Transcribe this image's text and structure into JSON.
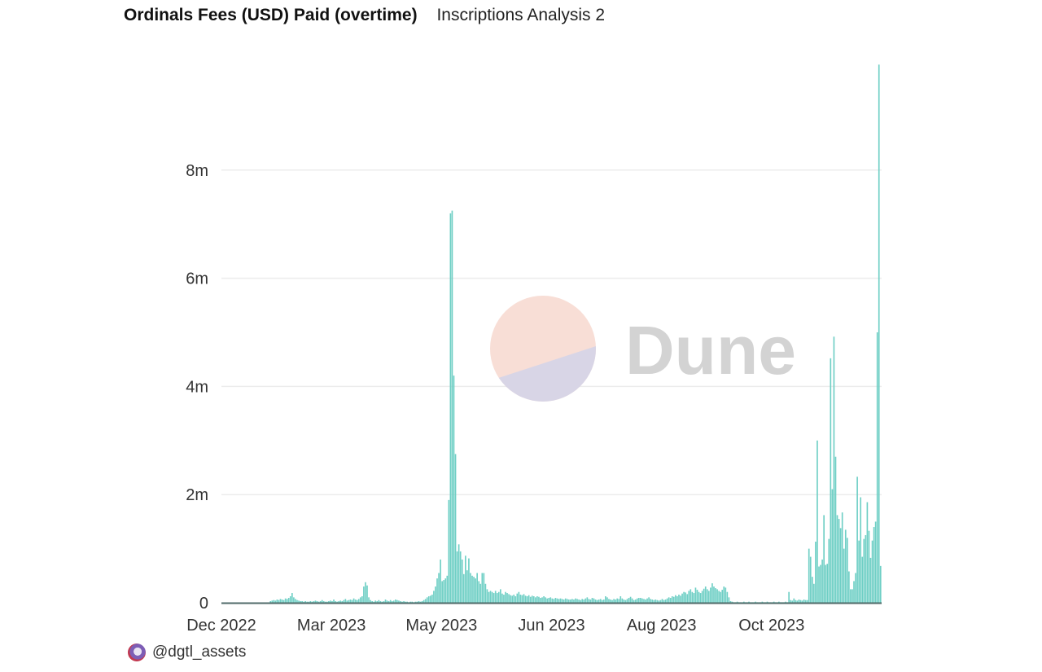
{
  "header": {
    "title": "Ordinals Fees (USD) Paid (overtime)",
    "subtitle": "Inscriptions Analysis 2"
  },
  "watermark": {
    "text": "Dune",
    "colors": {
      "top": "#f8ded6",
      "bottom": "#d8d5e6",
      "text": "#d3d3d3"
    }
  },
  "footer": {
    "author": "@dgtl_assets"
  },
  "chart_data": {
    "type": "bar",
    "title": "Ordinals Fees (USD) Paid (overtime)",
    "xlabel": "",
    "ylabel": "",
    "bar_color": "#6fcfc5",
    "grid": true,
    "ylim": [
      0,
      10
    ],
    "y_ticks": [
      {
        "value": 0,
        "label": "0"
      },
      {
        "value": 2,
        "label": "2m"
      },
      {
        "value": 4,
        "label": "4m"
      },
      {
        "value": 6,
        "label": "6m"
      },
      {
        "value": 8,
        "label": "8m"
      }
    ],
    "x_ticks": [
      {
        "index": 0,
        "label": "Dec 2022"
      },
      {
        "index": 66,
        "label": "Mar 2023"
      },
      {
        "index": 132,
        "label": "May 2023"
      },
      {
        "index": 198,
        "label": "Jun 2023"
      },
      {
        "index": 264,
        "label": "Aug 2023"
      },
      {
        "index": 330,
        "label": "Oct 2023"
      }
    ],
    "values": [
      0,
      0,
      0,
      0,
      0,
      0,
      0,
      0,
      0,
      0,
      0,
      0,
      0,
      0,
      0,
      0,
      0,
      0,
      0,
      0,
      0,
      0,
      0,
      0,
      0,
      0,
      0,
      0,
      0,
      0.03,
      0.04,
      0.05,
      0.04,
      0.06,
      0.05,
      0.07,
      0.06,
      0.05,
      0.08,
      0.07,
      0.09,
      0.12,
      0.18,
      0.1,
      0.07,
      0.05,
      0.04,
      0.03,
      0.03,
      0.02,
      0.03,
      0.02,
      0.02,
      0.03,
      0.02,
      0.03,
      0.04,
      0.03,
      0.02,
      0.03,
      0.05,
      0.03,
      0.02,
      0.02,
      0.03,
      0.04,
      0.03,
      0.06,
      0.03,
      0.02,
      0.03,
      0.04,
      0.03,
      0.05,
      0.07,
      0.04,
      0.05,
      0.06,
      0.05,
      0.08,
      0.06,
      0.05,
      0.07,
      0.1,
      0.12,
      0.3,
      0.38,
      0.32,
      0.1,
      0.05,
      0.03,
      0.02,
      0.04,
      0.03,
      0.05,
      0.03,
      0.02,
      0.03,
      0.06,
      0.04,
      0.03,
      0.05,
      0.03,
      0.04,
      0.06,
      0.05,
      0.04,
      0.03,
      0.02,
      0.03,
      0.02,
      0.02,
      0.01,
      0.02,
      0.02,
      0.01,
      0.02,
      0.02,
      0.03,
      0.02,
      0.03,
      0.05,
      0.07,
      0.1,
      0.12,
      0.13,
      0.15,
      0.22,
      0.3,
      0.45,
      0.55,
      0.8,
      0.4,
      0.42,
      0.45,
      0.5,
      1.9,
      7.2,
      7.25,
      4.2,
      2.75,
      0.95,
      1.08,
      0.95,
      0.8,
      0.53,
      0.87,
      0.6,
      0.82,
      0.55,
      0.5,
      0.48,
      0.45,
      0.55,
      0.4,
      0.35,
      0.55,
      0.55,
      0.35,
      0.25,
      0.2,
      0.22,
      0.2,
      0.18,
      0.22,
      0.18,
      0.2,
      0.25,
      0.17,
      0.15,
      0.2,
      0.18,
      0.16,
      0.14,
      0.13,
      0.15,
      0.12,
      0.17,
      0.2,
      0.15,
      0.14,
      0.16,
      0.13,
      0.12,
      0.14,
      0.11,
      0.13,
      0.12,
      0.1,
      0.12,
      0.11,
      0.09,
      0.1,
      0.12,
      0.1,
      0.08,
      0.09,
      0.1,
      0.08,
      0.07,
      0.09,
      0.08,
      0.07,
      0.08,
      0.07,
      0.06,
      0.08,
      0.07,
      0.06,
      0.06,
      0.07,
      0.06,
      0.08,
      0.07,
      0.06,
      0.05,
      0.07,
      0.06,
      0.08,
      0.1,
      0.07,
      0.06,
      0.09,
      0.08,
      0.06,
      0.05,
      0.06,
      0.07,
      0.05,
      0.06,
      0.12,
      0.1,
      0.07,
      0.06,
      0.05,
      0.07,
      0.06,
      0.08,
      0.07,
      0.12,
      0.08,
      0.06,
      0.05,
      0.07,
      0.09,
      0.11,
      0.08,
      0.05,
      0.06,
      0.08,
      0.09,
      0.09,
      0.08,
      0.07,
      0.06,
      0.08,
      0.1,
      0.07,
      0.06,
      0.05,
      0.06,
      0.05,
      0.04,
      0.05,
      0.07,
      0.05,
      0.06,
      0.08,
      0.1,
      0.09,
      0.12,
      0.11,
      0.14,
      0.12,
      0.15,
      0.13,
      0.17,
      0.2,
      0.19,
      0.16,
      0.22,
      0.25,
      0.2,
      0.18,
      0.28,
      0.24,
      0.2,
      0.18,
      0.22,
      0.26,
      0.3,
      0.25,
      0.22,
      0.28,
      0.36,
      0.3,
      0.27,
      0.25,
      0.22,
      0.2,
      0.24,
      0.3,
      0.28,
      0.2,
      0.1,
      0.03,
      0.02,
      0.01,
      0.01,
      0.02,
      0.01,
      0.01,
      0.01,
      0.02,
      0.01,
      0.01,
      0.02,
      0.01,
      0.01,
      0.01,
      0.02,
      0.01,
      0.01,
      0.01,
      0.02,
      0.01,
      0.01,
      0.02,
      0.01,
      0.01,
      0.01,
      0.02,
      0.01,
      0.01,
      0.02,
      0.01,
      0.01,
      0.01,
      0.02,
      0.01,
      0.2,
      0.05,
      0.04,
      0.08,
      0.05,
      0.04,
      0.06,
      0.05,
      0.04,
      0.06,
      0.05,
      0.05,
      1.0,
      0.85,
      0.48,
      0.35,
      1.13,
      3.0,
      0.67,
      0.7,
      0.8,
      1.62,
      0.7,
      0.72,
      1.18,
      4.52,
      2.1,
      4.92,
      2.7,
      1.62,
      1.55,
      1.38,
      1.67,
      1.0,
      1.35,
      1.2,
      0.58,
      0.25,
      0.25,
      0.4,
      0.55,
      2.33,
      1.15,
      1.95,
      0.85,
      1.18,
      1.25,
      1.86,
      1.33,
      0.83,
      1.15,
      1.4,
      1.5,
      5.0,
      9.95,
      0.68
    ]
  }
}
